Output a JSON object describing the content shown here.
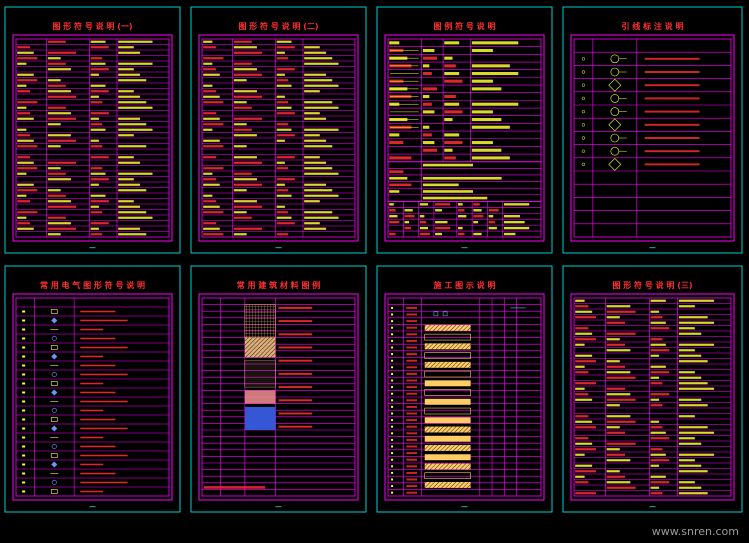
{
  "sheets": [
    {
      "id": "s1",
      "title": "图 形 符 号 说 明 (一)",
      "type": "list"
    },
    {
      "id": "s2",
      "title": "图 形 符 号 说 明 (二)",
      "type": "list"
    },
    {
      "id": "s3",
      "title": "图 例 符 号 说 明",
      "type": "lines"
    },
    {
      "id": "s4",
      "title": "引 线 标 注 说 明",
      "type": "symbols"
    },
    {
      "id": "s5",
      "title": "常 用 电 气 图 形 符 号 说 明",
      "type": "symbols2"
    },
    {
      "id": "s6",
      "title": "常 用 建 筑 材 料 图 例",
      "type": "materials"
    },
    {
      "id": "s7",
      "title": "施 工 图 示 说 明",
      "type": "patterns"
    },
    {
      "id": "s8",
      "title": "图 形 符 号 说 明 (三)",
      "type": "list"
    }
  ],
  "colors": {
    "frame": "#00d0d0",
    "table": "#ff00ff",
    "title": "#ff3030",
    "text": "#ffff33",
    "background": "#000000"
  },
  "watermark": "www.snren.com"
}
